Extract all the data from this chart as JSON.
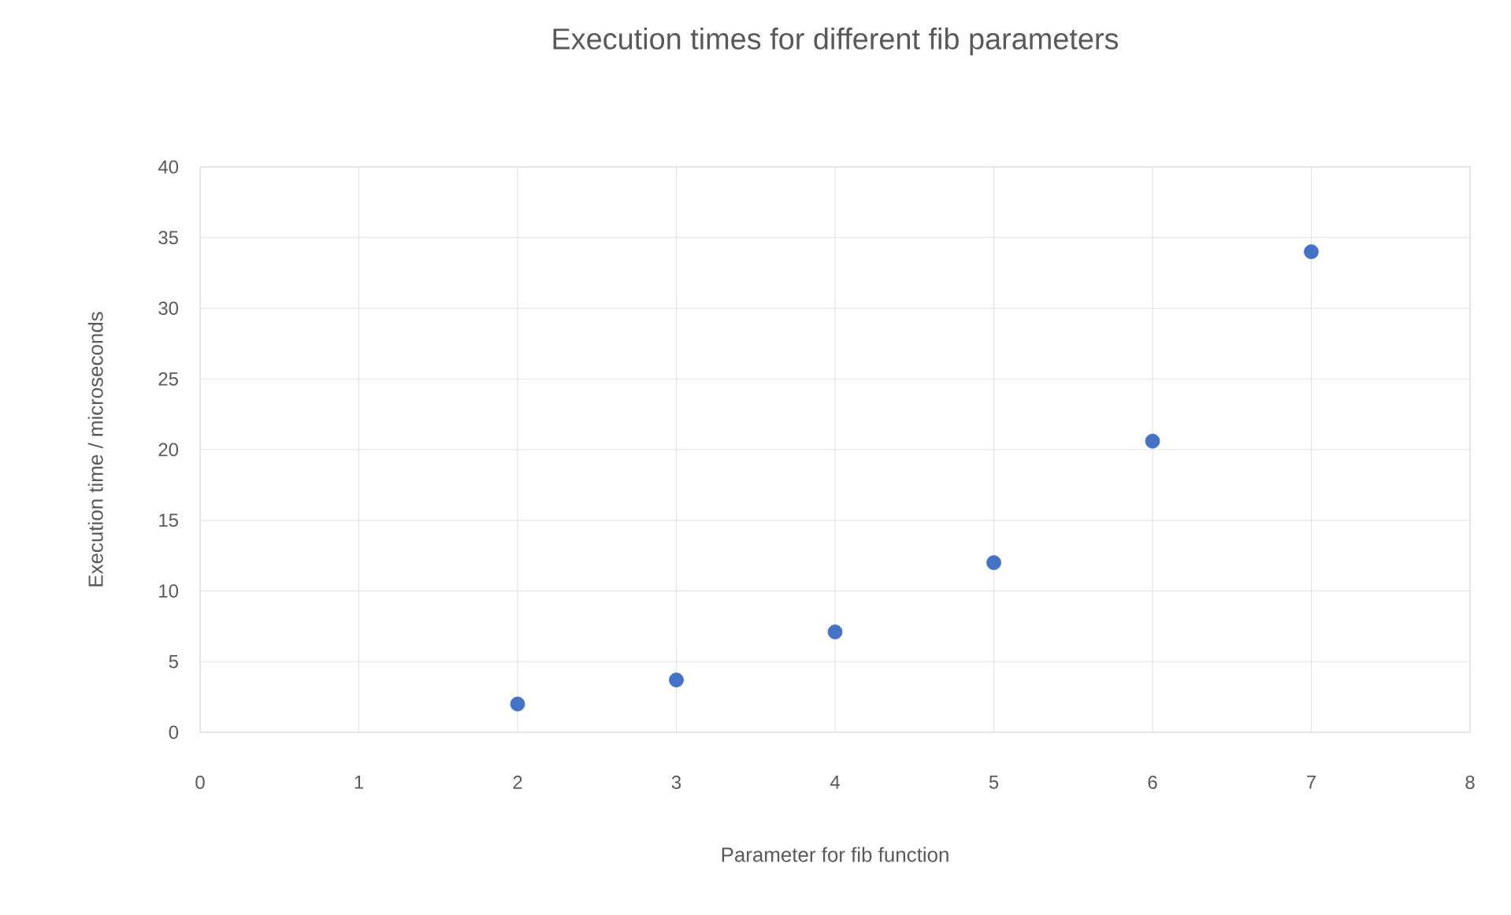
{
  "chart_data": {
    "type": "scatter",
    "title": "Execution times for different fib parameters",
    "xlabel": "Parameter for fib function",
    "ylabel": "Execution time / microseconds",
    "x": [
      2,
      3,
      4,
      5,
      6,
      7
    ],
    "series": [
      {
        "color": "#4472c4",
        "values": [
          2.0,
          3.7,
          7.1,
          12.0,
          20.6,
          34.0
        ]
      }
    ],
    "xlim": [
      0,
      8
    ],
    "xticks": [
      0,
      1,
      2,
      3,
      4,
      5,
      6,
      7,
      8
    ],
    "ylim": [
      0,
      40
    ],
    "yticks": [
      0,
      5,
      10,
      15,
      20,
      25,
      30,
      35,
      40
    ],
    "grid": true,
    "marker": "circle"
  }
}
